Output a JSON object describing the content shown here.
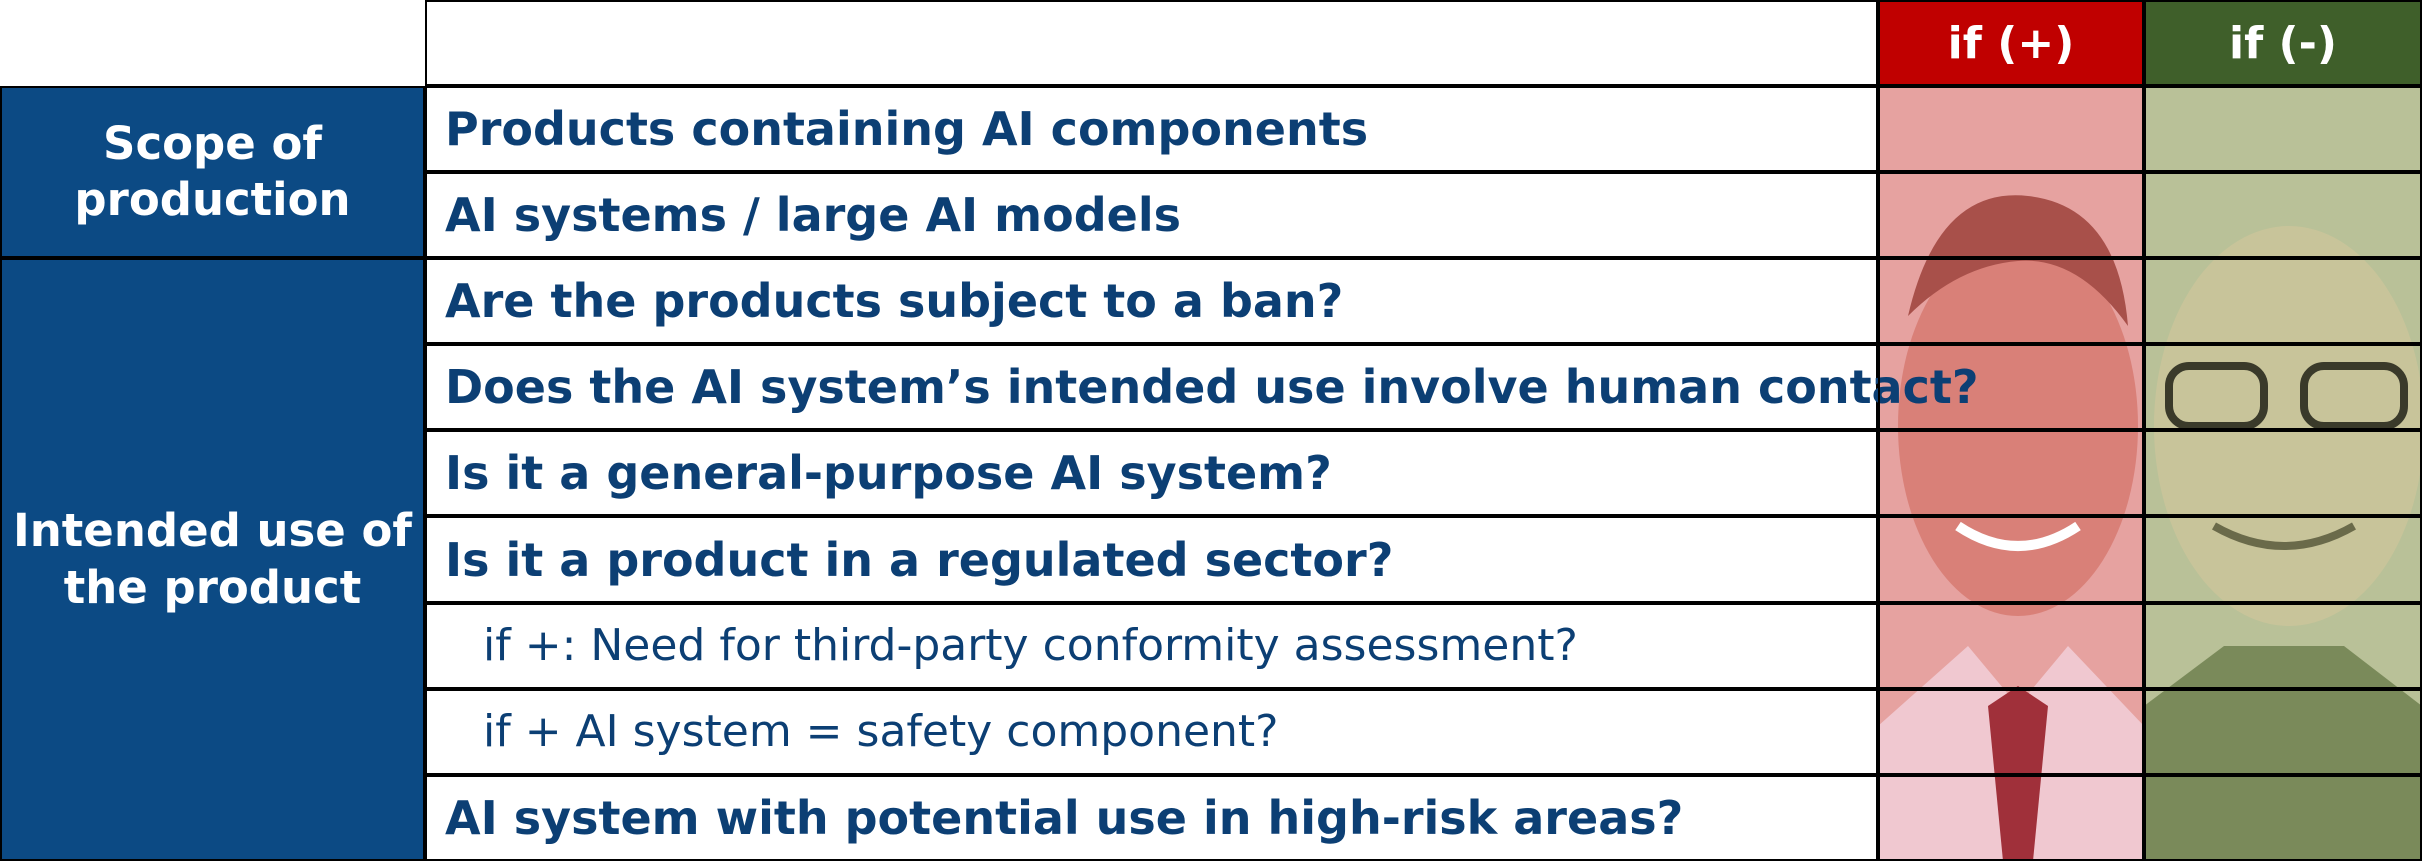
{
  "header": [
    "if (+)",
    "if (-)"
  ],
  "groups": [
    {
      "label": "Scope of production"
    },
    {
      "label": "Intended use of the product"
    }
  ],
  "rows": [
    "Products containing AI components",
    "AI systems / large AI models",
    "Are the products subject to a ban?",
    "Does the AI system’s intended use involve human contact?",
    "Is it a general-purpose AI system?",
    "Is it a product in a regulated sector?",
    "if +: Need for third-party conformity assessment?",
    "if + AI system = safety component?",
    "AI system with potential use in high-risk areas?"
  ]
}
